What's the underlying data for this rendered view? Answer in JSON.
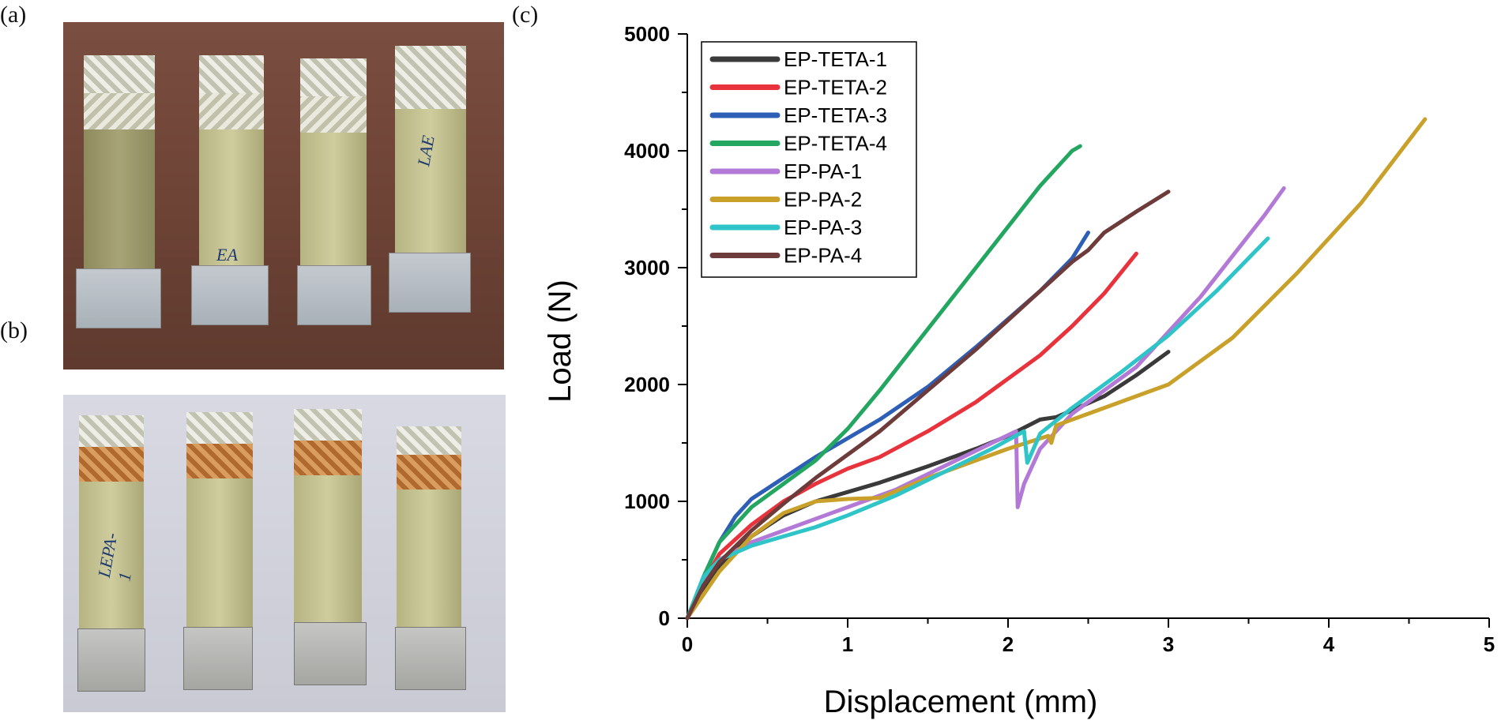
{
  "panels": {
    "a": "(a)",
    "b": "(b)",
    "c": "(c)"
  },
  "photo_a": {
    "coupon_markings": [
      "",
      "EA",
      "",
      "LAE"
    ]
  },
  "photo_b": {
    "coupon_markings": [
      "LEPA-1",
      "",
      "",
      ""
    ]
  },
  "colors": {
    "EP-TETA-1": "#3a3a3a",
    "EP-TETA-2": "#e8323c",
    "EP-TETA-3": "#2e5fb7",
    "EP-TETA-4": "#23a760",
    "EP-PA-1": "#b27ad6",
    "EP-PA-2": "#c9a12a",
    "EP-PA-3": "#2fc5c8",
    "EP-PA-4": "#6e3b3b"
  },
  "chart_data": {
    "type": "line",
    "title": "",
    "xlabel": "Displacement (mm)",
    "ylabel": "Load (N)",
    "xlim": [
      0,
      5
    ],
    "ylim": [
      0,
      5000
    ],
    "xticks": [
      "0",
      "1",
      "2",
      "3",
      "4",
      "5"
    ],
    "yticks": [
      "0",
      "1000",
      "2000",
      "3000",
      "4000",
      "5000"
    ],
    "legend_position": "top-left",
    "grid": false,
    "series": [
      {
        "name": "EP-TETA-1",
        "points": [
          [
            0,
            0
          ],
          [
            0.1,
            250
          ],
          [
            0.2,
            450
          ],
          [
            0.4,
            700
          ],
          [
            0.6,
            880
          ],
          [
            0.8,
            1000
          ],
          [
            1.0,
            1080
          ],
          [
            1.2,
            1160
          ],
          [
            1.5,
            1300
          ],
          [
            1.8,
            1450
          ],
          [
            2.0,
            1560
          ],
          [
            2.2,
            1700
          ],
          [
            2.3,
            1720
          ],
          [
            2.4,
            1780
          ],
          [
            2.6,
            1900
          ],
          [
            2.8,
            2080
          ],
          [
            3.0,
            2280
          ]
        ]
      },
      {
        "name": "EP-TETA-2",
        "points": [
          [
            0,
            0
          ],
          [
            0.1,
            300
          ],
          [
            0.2,
            550
          ],
          [
            0.4,
            800
          ],
          [
            0.6,
            1000
          ],
          [
            0.8,
            1150
          ],
          [
            1.0,
            1280
          ],
          [
            1.2,
            1380
          ],
          [
            1.5,
            1600
          ],
          [
            1.8,
            1850
          ],
          [
            2.0,
            2050
          ],
          [
            2.2,
            2250
          ],
          [
            2.4,
            2500
          ],
          [
            2.6,
            2780
          ],
          [
            2.8,
            3120
          ]
        ]
      },
      {
        "name": "EP-TETA-3",
        "points": [
          [
            0,
            0
          ],
          [
            0.1,
            350
          ],
          [
            0.2,
            650
          ],
          [
            0.3,
            870
          ],
          [
            0.4,
            1020
          ],
          [
            0.6,
            1200
          ],
          [
            0.8,
            1380
          ],
          [
            1.0,
            1540
          ],
          [
            1.2,
            1700
          ],
          [
            1.5,
            1980
          ],
          [
            1.8,
            2320
          ],
          [
            2.0,
            2560
          ],
          [
            2.2,
            2800
          ],
          [
            2.4,
            3080
          ],
          [
            2.5,
            3300
          ]
        ]
      },
      {
        "name": "EP-TETA-4",
        "points": [
          [
            0,
            0
          ],
          [
            0.1,
            350
          ],
          [
            0.2,
            650
          ],
          [
            0.4,
            950
          ],
          [
            0.6,
            1150
          ],
          [
            0.8,
            1350
          ],
          [
            1.0,
            1620
          ],
          [
            1.2,
            1950
          ],
          [
            1.4,
            2300
          ],
          [
            1.6,
            2650
          ],
          [
            1.8,
            3000
          ],
          [
            2.0,
            3350
          ],
          [
            2.2,
            3700
          ],
          [
            2.4,
            4000
          ],
          [
            2.45,
            4040
          ]
        ]
      },
      {
        "name": "EP-PA-1",
        "points": [
          [
            0,
            0
          ],
          [
            0.1,
            300
          ],
          [
            0.2,
            500
          ],
          [
            0.4,
            650
          ],
          [
            0.6,
            750
          ],
          [
            0.8,
            850
          ],
          [
            1.0,
            950
          ],
          [
            1.3,
            1100
          ],
          [
            1.6,
            1300
          ],
          [
            1.9,
            1500
          ],
          [
            2.05,
            1600
          ],
          [
            2.06,
            950
          ],
          [
            2.1,
            1150
          ],
          [
            2.2,
            1450
          ],
          [
            2.4,
            1750
          ],
          [
            2.6,
            1950
          ],
          [
            2.8,
            2150
          ],
          [
            3.0,
            2450
          ],
          [
            3.2,
            2750
          ],
          [
            3.4,
            3100
          ],
          [
            3.6,
            3450
          ],
          [
            3.72,
            3680
          ]
        ]
      },
      {
        "name": "EP-PA-2",
        "points": [
          [
            0,
            0
          ],
          [
            0.1,
            200
          ],
          [
            0.2,
            400
          ],
          [
            0.4,
            700
          ],
          [
            0.6,
            900
          ],
          [
            0.8,
            1000
          ],
          [
            1.0,
            1020
          ],
          [
            1.2,
            1030
          ],
          [
            1.5,
            1200
          ],
          [
            1.8,
            1350
          ],
          [
            2.0,
            1450
          ],
          [
            2.25,
            1560
          ],
          [
            2.27,
            1500
          ],
          [
            2.3,
            1650
          ],
          [
            2.6,
            1800
          ],
          [
            3.0,
            2000
          ],
          [
            3.4,
            2400
          ],
          [
            3.8,
            2950
          ],
          [
            4.2,
            3550
          ],
          [
            4.6,
            4270
          ]
        ]
      },
      {
        "name": "EP-PA-3",
        "points": [
          [
            0,
            0
          ],
          [
            0.1,
            350
          ],
          [
            0.2,
            500
          ],
          [
            0.4,
            620
          ],
          [
            0.6,
            700
          ],
          [
            0.8,
            780
          ],
          [
            1.0,
            880
          ],
          [
            1.3,
            1050
          ],
          [
            1.6,
            1250
          ],
          [
            1.9,
            1450
          ],
          [
            2.1,
            1600
          ],
          [
            2.12,
            1330
          ],
          [
            2.2,
            1580
          ],
          [
            2.4,
            1800
          ],
          [
            2.7,
            2100
          ],
          [
            3.0,
            2420
          ],
          [
            3.3,
            2800
          ],
          [
            3.62,
            3250
          ]
        ]
      },
      {
        "name": "EP-PA-4",
        "points": [
          [
            0,
            0
          ],
          [
            0.1,
            280
          ],
          [
            0.2,
            480
          ],
          [
            0.4,
            750
          ],
          [
            0.6,
            980
          ],
          [
            0.8,
            1200
          ],
          [
            1.0,
            1400
          ],
          [
            1.2,
            1600
          ],
          [
            1.5,
            1950
          ],
          [
            1.8,
            2300
          ],
          [
            2.0,
            2550
          ],
          [
            2.2,
            2800
          ],
          [
            2.4,
            3050
          ],
          [
            2.5,
            3150
          ],
          [
            2.6,
            3300
          ],
          [
            2.8,
            3480
          ],
          [
            3.0,
            3650
          ]
        ]
      }
    ]
  }
}
